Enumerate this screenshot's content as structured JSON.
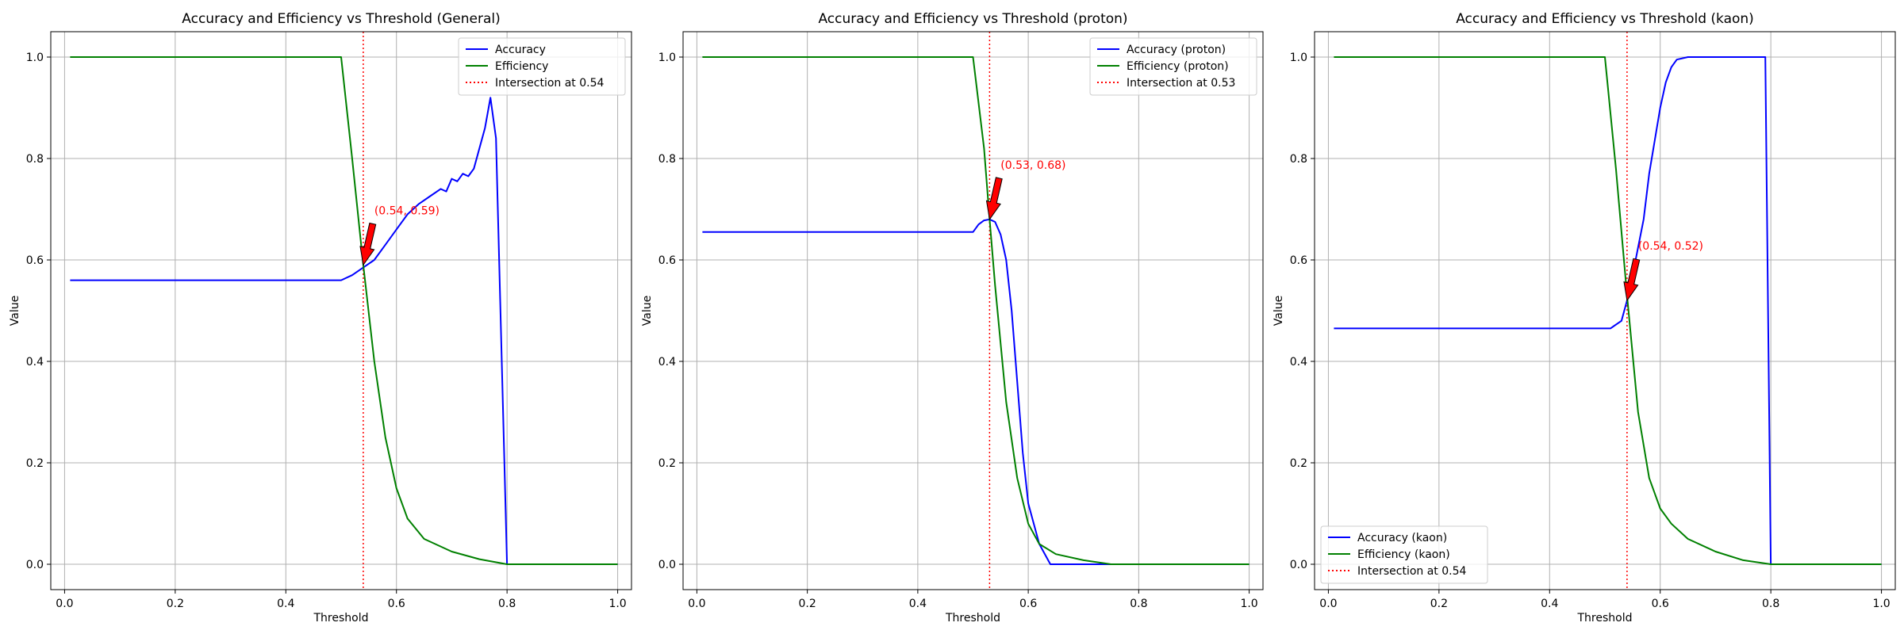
{
  "chart_data": [
    {
      "type": "line",
      "title": "Accuracy and Efficiency vs Threshold (General)",
      "xlabel": "Threshold",
      "ylabel": "Value",
      "xlim": [
        -0.025,
        1.025
      ],
      "ylim": [
        -0.05,
        1.05
      ],
      "xticks": [
        "0.0",
        "0.2",
        "0.4",
        "0.6",
        "0.8",
        "1.0"
      ],
      "yticks": [
        "0.0",
        "0.2",
        "0.4",
        "0.6",
        "0.8",
        "1.0"
      ],
      "grid": true,
      "legend_position": "upper right",
      "series": [
        {
          "name": "Accuracy",
          "color": "#0000ff",
          "points": [
            [
              0.01,
              0.56
            ],
            [
              0.5,
              0.56
            ],
            [
              0.52,
              0.57
            ],
            [
              0.54,
              0.585
            ],
            [
              0.56,
              0.6
            ],
            [
              0.58,
              0.63
            ],
            [
              0.6,
              0.66
            ],
            [
              0.62,
              0.69
            ],
            [
              0.64,
              0.71
            ],
            [
              0.66,
              0.725
            ],
            [
              0.68,
              0.74
            ],
            [
              0.69,
              0.735
            ],
            [
              0.7,
              0.76
            ],
            [
              0.71,
              0.755
            ],
            [
              0.72,
              0.77
            ],
            [
              0.73,
              0.765
            ],
            [
              0.74,
              0.78
            ],
            [
              0.75,
              0.82
            ],
            [
              0.76,
              0.86
            ],
            [
              0.77,
              0.92
            ],
            [
              0.78,
              0.84
            ],
            [
              0.8,
              0.0
            ],
            [
              1.0,
              0.0
            ]
          ]
        },
        {
          "name": "Efficiency",
          "color": "#008000",
          "points": [
            [
              0.01,
              1.0
            ],
            [
              0.5,
              1.0
            ],
            [
              0.52,
              0.8
            ],
            [
              0.54,
              0.59
            ],
            [
              0.56,
              0.4
            ],
            [
              0.58,
              0.25
            ],
            [
              0.6,
              0.15
            ],
            [
              0.62,
              0.09
            ],
            [
              0.65,
              0.05
            ],
            [
              0.7,
              0.025
            ],
            [
              0.75,
              0.01
            ],
            [
              0.8,
              0.0
            ],
            [
              1.0,
              0.0
            ]
          ]
        }
      ],
      "intersection": {
        "x": 0.54,
        "y": 0.59,
        "label": "Intersection at 0.54",
        "annotation": "(0.54, 0.59)",
        "text_pos": [
          0.56,
          0.69
        ],
        "color": "#ff0000"
      }
    },
    {
      "type": "line",
      "title": "Accuracy and Efficiency vs Threshold (proton)",
      "xlabel": "Threshold",
      "ylabel": "Value",
      "xlim": [
        -0.025,
        1.025
      ],
      "ylim": [
        -0.05,
        1.05
      ],
      "xticks": [
        "0.0",
        "0.2",
        "0.4",
        "0.6",
        "0.8",
        "1.0"
      ],
      "yticks": [
        "0.0",
        "0.2",
        "0.4",
        "0.6",
        "0.8",
        "1.0"
      ],
      "grid": true,
      "legend_position": "upper right",
      "series": [
        {
          "name": "Accuracy (proton)",
          "color": "#0000ff",
          "points": [
            [
              0.01,
              0.655
            ],
            [
              0.5,
              0.655
            ],
            [
              0.51,
              0.67
            ],
            [
              0.52,
              0.678
            ],
            [
              0.53,
              0.68
            ],
            [
              0.54,
              0.675
            ],
            [
              0.55,
              0.65
            ],
            [
              0.56,
              0.6
            ],
            [
              0.57,
              0.5
            ],
            [
              0.58,
              0.36
            ],
            [
              0.59,
              0.22
            ],
            [
              0.6,
              0.12
            ],
            [
              0.62,
              0.04
            ],
            [
              0.64,
              0.0
            ],
            [
              1.0,
              0.0
            ]
          ]
        },
        {
          "name": "Efficiency (proton)",
          "color": "#008000",
          "points": [
            [
              0.01,
              1.0
            ],
            [
              0.5,
              1.0
            ],
            [
              0.52,
              0.82
            ],
            [
              0.53,
              0.68
            ],
            [
              0.54,
              0.55
            ],
            [
              0.56,
              0.32
            ],
            [
              0.58,
              0.17
            ],
            [
              0.6,
              0.08
            ],
            [
              0.62,
              0.04
            ],
            [
              0.65,
              0.02
            ],
            [
              0.7,
              0.008
            ],
            [
              0.75,
              0.0
            ],
            [
              1.0,
              0.0
            ]
          ]
        }
      ],
      "intersection": {
        "x": 0.53,
        "y": 0.68,
        "label": "Intersection at 0.53",
        "annotation": "(0.53, 0.68)",
        "text_pos": [
          0.55,
          0.78
        ],
        "color": "#ff0000"
      }
    },
    {
      "type": "line",
      "title": "Accuracy and Efficiency vs Threshold (kaon)",
      "xlabel": "Threshold",
      "ylabel": "Value",
      "xlim": [
        -0.025,
        1.025
      ],
      "ylim": [
        -0.05,
        1.05
      ],
      "xticks": [
        "0.0",
        "0.2",
        "0.4",
        "0.6",
        "0.8",
        "1.0"
      ],
      "yticks": [
        "0.0",
        "0.2",
        "0.4",
        "0.6",
        "0.8",
        "1.0"
      ],
      "grid": true,
      "legend_position": "lower left",
      "series": [
        {
          "name": "Accuracy (kaon)",
          "color": "#0000ff",
          "points": [
            [
              0.01,
              0.465
            ],
            [
              0.5,
              0.465
            ],
            [
              0.51,
              0.465
            ],
            [
              0.53,
              0.48
            ],
            [
              0.54,
              0.52
            ],
            [
              0.55,
              0.57
            ],
            [
              0.57,
              0.68
            ],
            [
              0.58,
              0.77
            ],
            [
              0.6,
              0.9
            ],
            [
              0.61,
              0.95
            ],
            [
              0.62,
              0.98
            ],
            [
              0.63,
              0.995
            ],
            [
              0.65,
              1.0
            ],
            [
              0.79,
              1.0
            ],
            [
              0.8,
              0.0
            ],
            [
              1.0,
              0.0
            ]
          ]
        },
        {
          "name": "Efficiency (kaon)",
          "color": "#008000",
          "points": [
            [
              0.01,
              1.0
            ],
            [
              0.5,
              1.0
            ],
            [
              0.52,
              0.78
            ],
            [
              0.54,
              0.53
            ],
            [
              0.56,
              0.3
            ],
            [
              0.58,
              0.17
            ],
            [
              0.6,
              0.11
            ],
            [
              0.62,
              0.08
            ],
            [
              0.65,
              0.05
            ],
            [
              0.7,
              0.025
            ],
            [
              0.75,
              0.008
            ],
            [
              0.8,
              0.0
            ],
            [
              1.0,
              0.0
            ]
          ]
        }
      ],
      "intersection": {
        "x": 0.54,
        "y": 0.52,
        "label": "Intersection at 0.54",
        "annotation": "(0.54, 0.52)",
        "text_pos": [
          0.56,
          0.62
        ],
        "color": "#ff0000"
      }
    }
  ]
}
